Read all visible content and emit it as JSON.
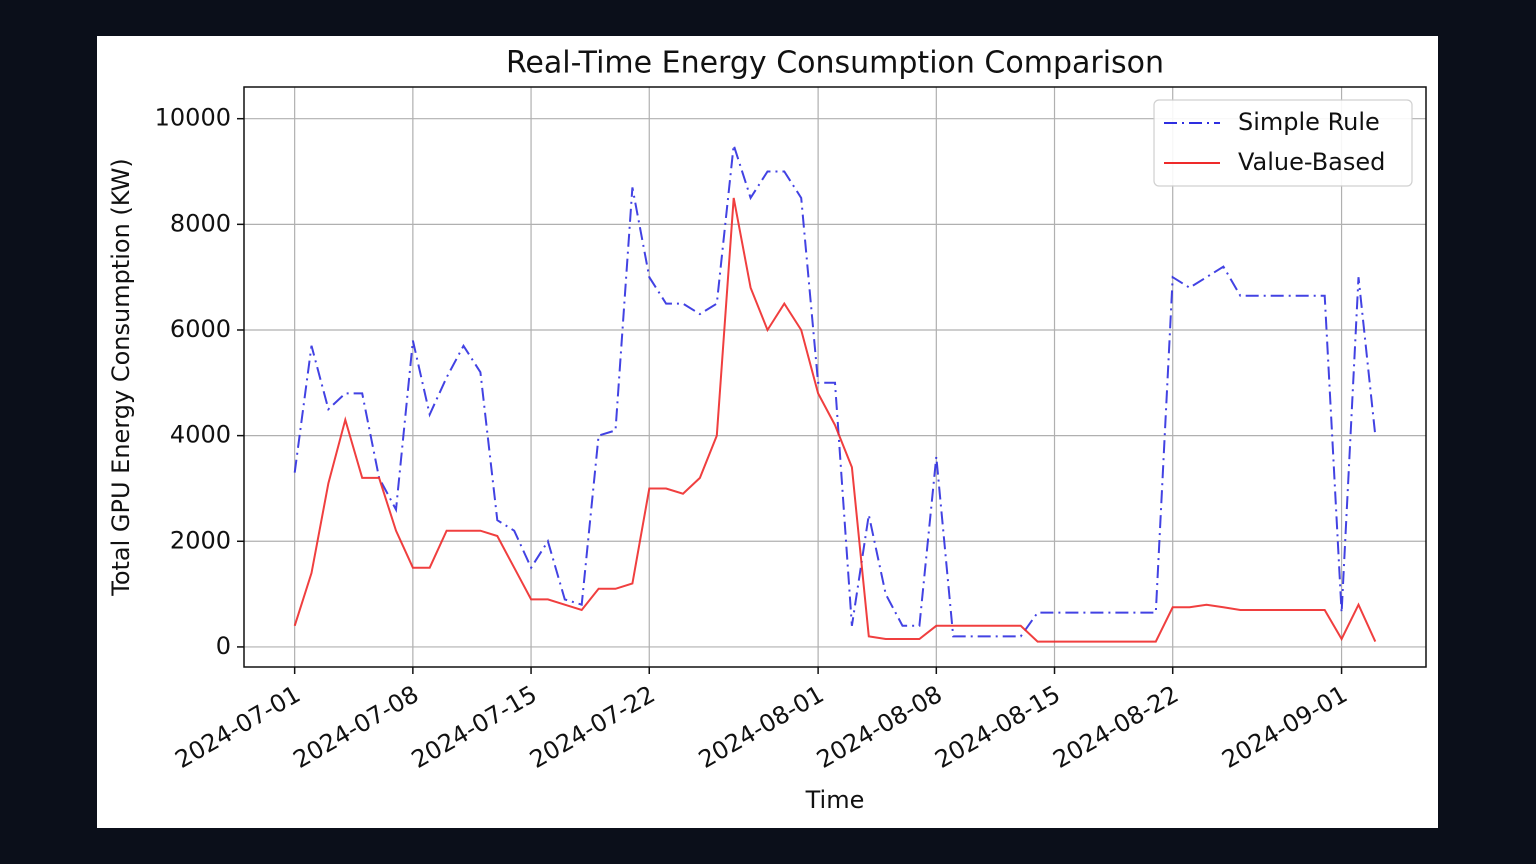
{
  "chart_data": {
    "type": "line",
    "title": "Real-Time Energy Consumption Comparison",
    "x_label": "Time",
    "y_label": "Total GPU Energy Consumption (KW)",
    "x": [
      "2024-07-01",
      "2024-07-02",
      "2024-07-03",
      "2024-07-04",
      "2024-07-05",
      "2024-07-06",
      "2024-07-07",
      "2024-07-08",
      "2024-07-09",
      "2024-07-10",
      "2024-07-11",
      "2024-07-12",
      "2024-07-13",
      "2024-07-14",
      "2024-07-15",
      "2024-07-16",
      "2024-07-17",
      "2024-07-18",
      "2024-07-19",
      "2024-07-20",
      "2024-07-21",
      "2024-07-22",
      "2024-07-23",
      "2024-07-24",
      "2024-07-25",
      "2024-07-26",
      "2024-07-27",
      "2024-07-28",
      "2024-07-29",
      "2024-07-30",
      "2024-07-31",
      "2024-08-01",
      "2024-08-02",
      "2024-08-03",
      "2024-08-04",
      "2024-08-05",
      "2024-08-06",
      "2024-08-07",
      "2024-08-08",
      "2024-08-09",
      "2024-08-10",
      "2024-08-11",
      "2024-08-12",
      "2024-08-13",
      "2024-08-14",
      "2024-08-15",
      "2024-08-16",
      "2024-08-17",
      "2024-08-18",
      "2024-08-19",
      "2024-08-20",
      "2024-08-21",
      "2024-08-22",
      "2024-08-23",
      "2024-08-24",
      "2024-08-25",
      "2024-08-26",
      "2024-08-27",
      "2024-08-28",
      "2024-08-29",
      "2024-08-30",
      "2024-08-31",
      "2024-09-01",
      "2024-09-02",
      "2024-09-03"
    ],
    "series": [
      {
        "name": "Simple Rule",
        "color": "#2e2ee0",
        "dash": "dash-dot",
        "values": [
          3300,
          5700,
          4500,
          4800,
          4800,
          3200,
          2600,
          5800,
          4400,
          5100,
          5700,
          5200,
          2400,
          2200,
          1500,
          2000,
          900,
          800,
          4000,
          4100,
          8700,
          7000,
          6500,
          6500,
          6300,
          6500,
          9500,
          8500,
          9000,
          9000,
          8500,
          5000,
          5000,
          400,
          2500,
          1000,
          400,
          400,
          3600,
          200,
          200,
          200,
          200,
          200,
          650,
          650,
          650,
          650,
          650,
          650,
          650,
          650,
          7000,
          6800,
          7000,
          7200,
          6650,
          6650,
          6650,
          6650,
          6650,
          6650,
          650,
          7000,
          4000
        ]
      },
      {
        "name": "Value-Based",
        "color": "#ee2a2a",
        "dash": "solid",
        "values": [
          400,
          1400,
          3100,
          4300,
          3200,
          3200,
          2200,
          1500,
          1500,
          2200,
          2200,
          2200,
          2100,
          1500,
          900,
          900,
          800,
          700,
          1100,
          1100,
          1200,
          3000,
          3000,
          2900,
          3200,
          4000,
          8500,
          6800,
          6000,
          6500,
          6000,
          4800,
          4200,
          3400,
          200,
          150,
          150,
          150,
          400,
          400,
          400,
          400,
          400,
          400,
          100,
          100,
          100,
          100,
          100,
          100,
          100,
          100,
          750,
          750,
          800,
          750,
          700,
          700,
          700,
          700,
          700,
          700,
          150,
          800,
          100
        ]
      }
    ],
    "xlim": [
      "2024-06-28",
      "2024-09-06"
    ],
    "xticks": [
      "2024-07-01",
      "2024-07-08",
      "2024-07-15",
      "2024-07-22",
      "2024-08-01",
      "2024-08-08",
      "2024-08-15",
      "2024-08-22",
      "2024-09-01"
    ],
    "ylim": [
      -380,
      10600
    ],
    "yticks": [
      0,
      2000,
      4000,
      6000,
      8000,
      10000
    ],
    "grid": true,
    "legend": "upper right"
  }
}
